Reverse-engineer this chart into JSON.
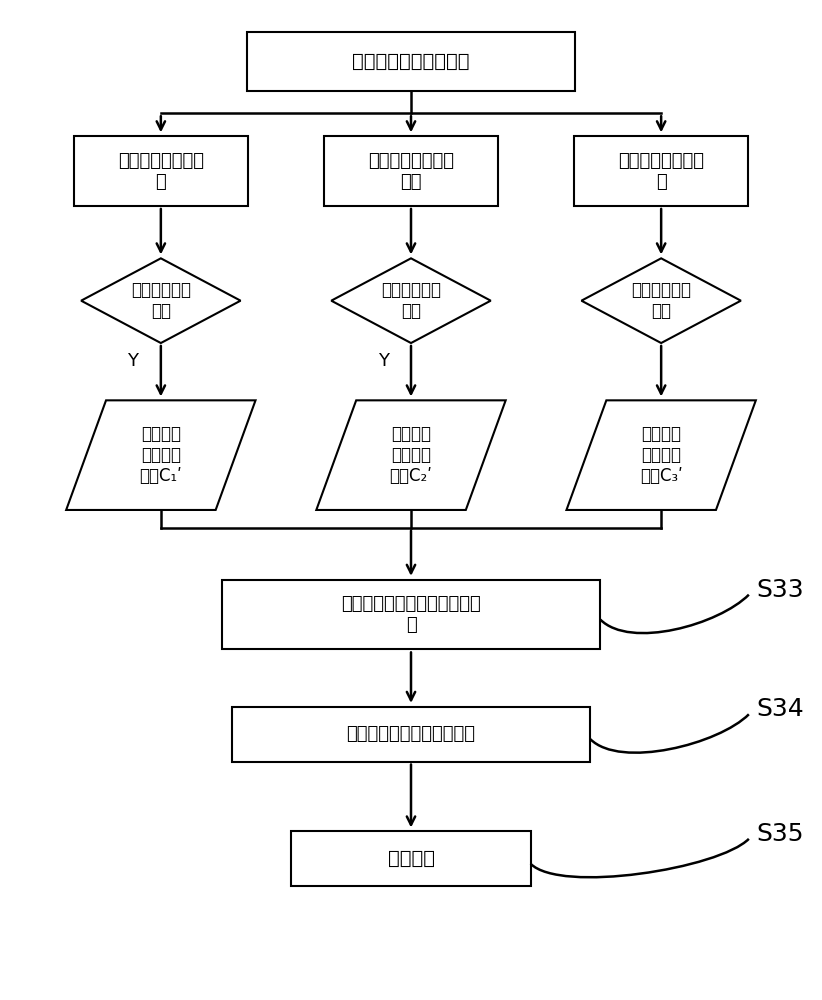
{
  "title": "第三敏感参数并集集合",
  "box1_left": "皮尔森相关系数算\n法",
  "box1_mid": "斯皮尔曼相关系数\n算法",
  "box1_right": "肯德尔相关系数算\n法",
  "diamond1": "第一预设相关\n系数",
  "diamond2": "第二预设相关\n系数",
  "diamond3": "第三预设相关\n系数",
  "para1_line1": "第二强相",
  "para1_line2": "关参数对",
  "para1_line3": "集合",
  "para1_sub": "C₁ʹ",
  "para2_line1": "第二强相",
  "para2_line2": "关参数对",
  "para2_line3": "集合",
  "para2_sub": "C₂ʹ",
  "para3_line1": "第二强相",
  "para3_line2": "关参数对",
  "para3_line3": "集合",
  "para3_sub": "C₃ʹ",
  "box_s33_line1": "得到第二强相关参数对交集集",
  "box_s33_line2": "合",
  "box_s34": "得到第四敏感参数并集集合",
  "box_s35": "模型训练",
  "label_s33": "S33",
  "label_s34": "S34",
  "label_s35": "S35",
  "y_label": "Y",
  "bg_color": "#ffffff",
  "box_color": "#ffffff",
  "border_color": "#000000",
  "text_color": "#000000",
  "arrow_color": "#000000",
  "font_size": 13,
  "label_font_size": 18
}
